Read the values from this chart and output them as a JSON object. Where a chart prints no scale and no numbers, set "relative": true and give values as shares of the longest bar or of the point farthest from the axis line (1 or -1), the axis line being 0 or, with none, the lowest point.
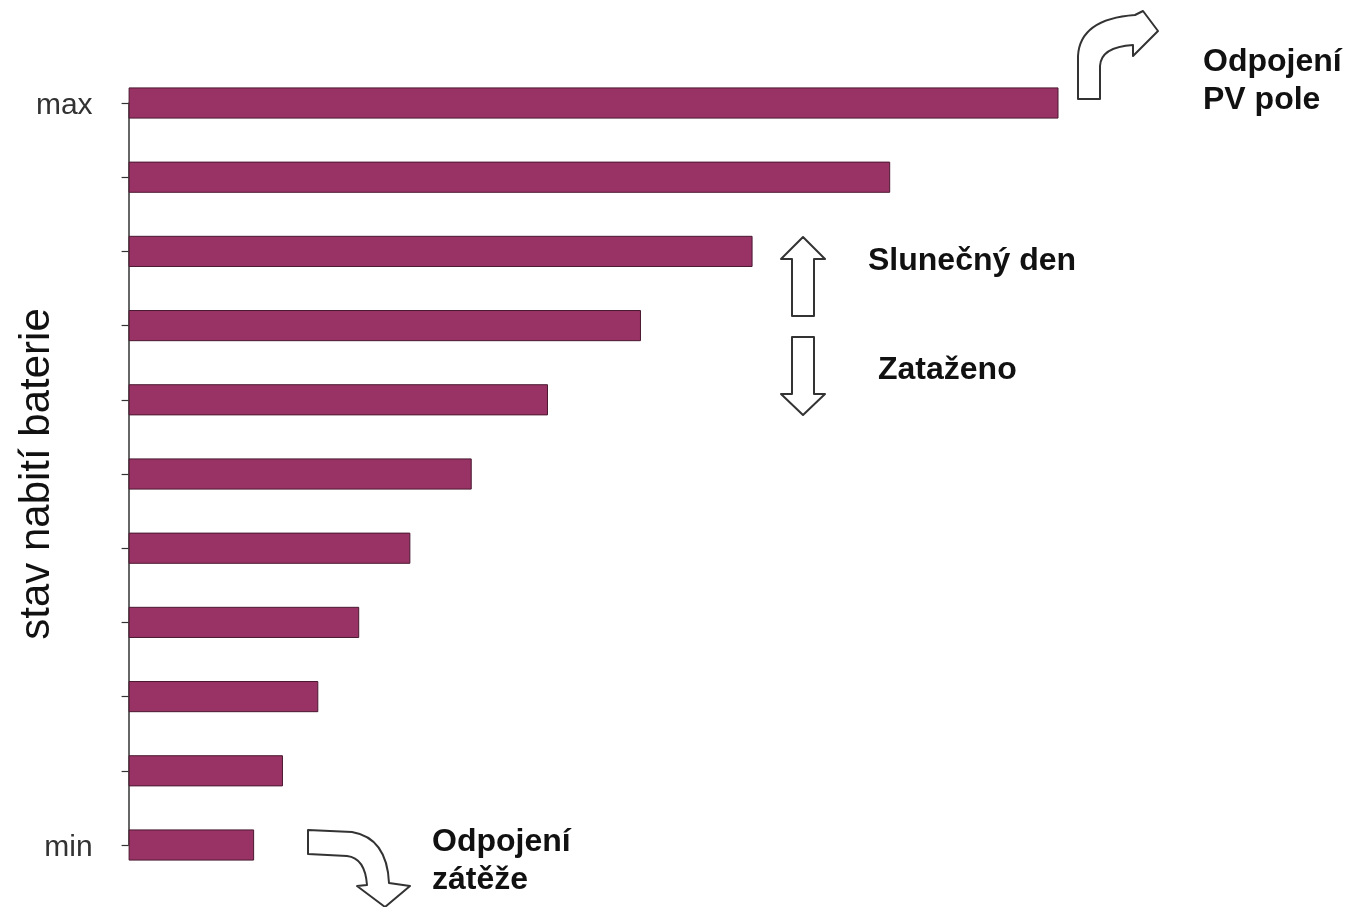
{
  "chart_data": {
    "type": "bar",
    "orientation": "horizontal",
    "relative": true,
    "ylabel": "stav nabití baterie",
    "categories": [
      "max",
      null,
      null,
      null,
      null,
      null,
      null,
      null,
      null,
      null,
      "min"
    ],
    "values": [
      1,
      0.819,
      0.671,
      0.551,
      0.451,
      0.369,
      0.303,
      0.248,
      0.204,
      0.166,
      0.135
    ],
    "color": "#993366",
    "annotations": [
      "Odpojení PV pole",
      "Slunečný den",
      "Zataženo",
      "Odpojení zátěže"
    ]
  }
}
